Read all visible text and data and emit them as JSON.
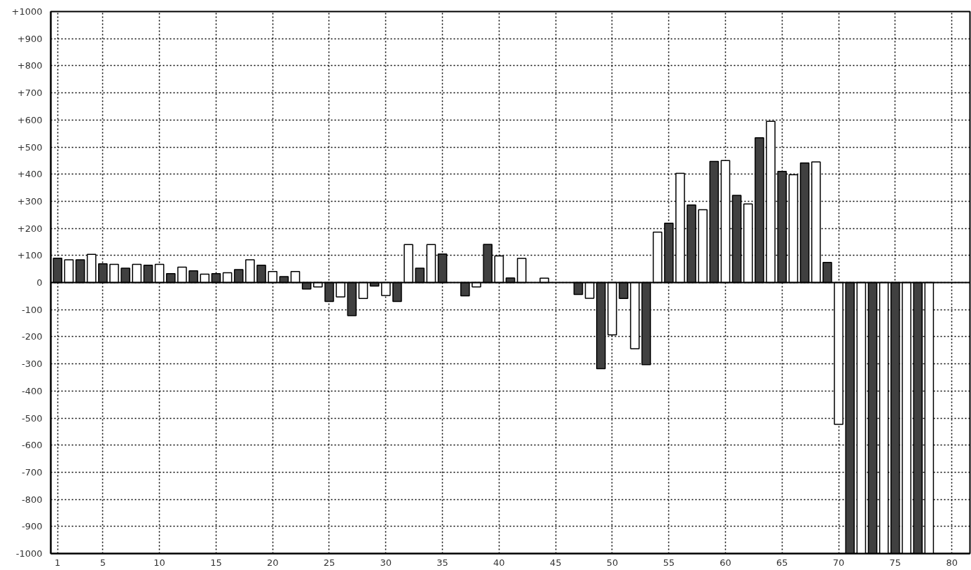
{
  "chart_data": {
    "type": "bar",
    "x": [
      1,
      2,
      3,
      4,
      5,
      6,
      7,
      8,
      9,
      10,
      11,
      12,
      13,
      14,
      15,
      16,
      17,
      18,
      19,
      20,
      21,
      22,
      23,
      24,
      25,
      26,
      27,
      28,
      29,
      30,
      31,
      32,
      33,
      34,
      35,
      36,
      37,
      38,
      39,
      40,
      41,
      42,
      43,
      44,
      45,
      46,
      47,
      48,
      49,
      50,
      51,
      52,
      53,
      54,
      55,
      56,
      57,
      58,
      59,
      60,
      61,
      62,
      63,
      64,
      65,
      66,
      67,
      68,
      69,
      70,
      71,
      72,
      73,
      74,
      75,
      76,
      77,
      78
    ],
    "values": [
      90,
      84,
      84,
      104,
      69,
      67,
      53,
      67,
      64,
      67,
      33,
      57,
      43,
      31,
      33,
      36,
      48,
      84,
      64,
      41,
      22,
      41,
      -24,
      -16,
      -70,
      -53,
      -122,
      -59,
      -13,
      -48,
      -70,
      140,
      53,
      140,
      105,
      null,
      -49,
      -16,
      141,
      98,
      17,
      89,
      null,
      16,
      null,
      null,
      -44,
      -58,
      -318,
      -193,
      -59,
      -244,
      -303,
      186,
      219,
      403,
      286,
      269,
      447,
      450,
      322,
      290,
      534,
      595,
      410,
      398,
      441,
      445,
      74,
      -523,
      -1000,
      -1000,
      -1000,
      -1000,
      -1000,
      -1000,
      -1000,
      -1000
    ],
    "colors": [
      "#404040",
      "#ffffff",
      "#404040",
      "#ffffff",
      "#404040",
      "#ffffff",
      "#404040",
      "#ffffff",
      "#404040",
      "#ffffff",
      "#404040",
      "#ffffff",
      "#404040",
      "#ffffff",
      "#404040",
      "#ffffff",
      "#404040",
      "#ffffff",
      "#404040",
      "#ffffff",
      "#404040",
      "#ffffff",
      "#404040",
      "#ffffff",
      "#404040",
      "#ffffff",
      "#404040",
      "#ffffff",
      "#404040",
      "#ffffff",
      "#404040",
      "#ffffff",
      "#404040",
      "#ffffff",
      "#404040",
      "#ffffff",
      "#404040",
      "#ffffff",
      "#404040",
      "#ffffff",
      "#404040",
      "#ffffff",
      "#404040",
      "#ffffff",
      "#404040",
      "#ffffff",
      "#404040",
      "#ffffff",
      "#404040",
      "#ffffff",
      "#404040",
      "#ffffff",
      "#404040",
      "#ffffff",
      "#404040",
      "#ffffff",
      "#404040",
      "#ffffff",
      "#404040",
      "#ffffff",
      "#404040",
      "#ffffff",
      "#404040",
      "#ffffff",
      "#404040",
      "#ffffff",
      "#404040",
      "#ffffff",
      "#404040",
      "#ffffff",
      "#404040",
      "#ffffff",
      "#404040",
      "#ffffff",
      "#404040",
      "#ffffff",
      "#404040",
      "#ffffff"
    ],
    "xlim": [
      0.4,
      81.6
    ],
    "xticks": [
      1,
      5,
      10,
      15,
      20,
      25,
      30,
      35,
      40,
      45,
      50,
      55,
      60,
      65,
      70,
      75,
      80
    ],
    "ylim": [
      -1000,
      1000
    ],
    "yticks": [
      {
        "value": 1000,
        "label": "+1000"
      },
      {
        "value": 900,
        "label": "+900"
      },
      {
        "value": 800,
        "label": "+800"
      },
      {
        "value": 700,
        "label": "+700"
      },
      {
        "value": 600,
        "label": "+600"
      },
      {
        "value": 500,
        "label": "+500"
      },
      {
        "value": 400,
        "label": "+400"
      },
      {
        "value": 300,
        "label": "+300"
      },
      {
        "value": 200,
        "label": "+200"
      },
      {
        "value": 100,
        "label": "+100"
      },
      0,
      {
        "value": -100,
        "label": "-100"
      },
      {
        "value": -200,
        "label": "-200"
      },
      {
        "value": -300,
        "label": "-300"
      },
      {
        "value": -400,
        "label": "-400"
      },
      {
        "value": -500,
        "label": "-500"
      },
      {
        "value": -600,
        "label": "-600"
      },
      {
        "value": -700,
        "label": "-700"
      },
      {
        "value": -800,
        "label": "-800"
      },
      {
        "value": -900,
        "label": "-900"
      },
      {
        "value": -1000,
        "label": "-1000"
      }
    ],
    "grid": true
  }
}
